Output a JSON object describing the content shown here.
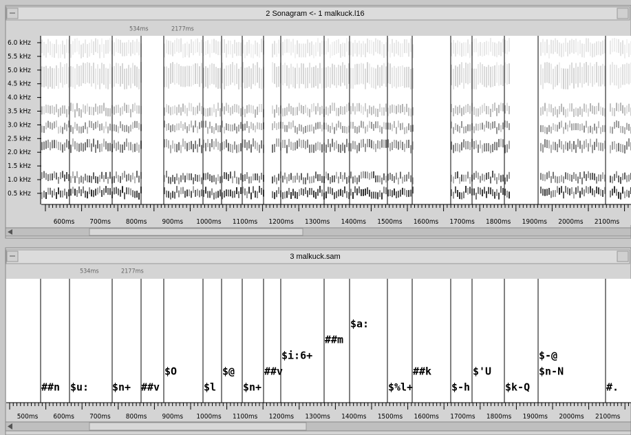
{
  "window1": {
    "title": "2 Sonagram <- 1 malkuck.l16",
    "markers": [
      "534ms",
      "2177ms"
    ],
    "freq_labels": [
      "6.0 kHz",
      "5.5 kHz",
      "5.0 kHz",
      "4.5 kHz",
      "4.0 kHz",
      "3.5 kHz",
      "3.0 kHz",
      "2.5 kHz",
      "2.0 kHz",
      "1.5 kHz",
      "1.0 kHz",
      "0.5 kHz"
    ],
    "time_labels": [
      "600ms",
      "700ms",
      "800ms",
      "900ms",
      "1000ms",
      "1100ms",
      "1200ms",
      "1300ms",
      "1400ms",
      "1500ms",
      "1600ms",
      "1700ms",
      "1800ms",
      "1900ms",
      "2000ms",
      "2100ms"
    ]
  },
  "window2": {
    "title": "3 malkuck.sam",
    "markers": [
      "534ms",
      "2177ms"
    ],
    "segment_labels": [
      "##n",
      "$u:",
      "$n+",
      "##v",
      "$O",
      "$l",
      "$@",
      "$n+",
      "##v",
      "$i:6+",
      "##m",
      "$a:",
      "$%l+",
      "##k",
      "$-h",
      "$'U",
      "$k-Q",
      "$-@",
      "$n-N",
      "#."
    ],
    "time_labels": [
      "500ms",
      "600ms",
      "700ms",
      "800ms",
      "900ms",
      "1000ms",
      "1100ms",
      "1200ms",
      "1300ms",
      "1400ms",
      "1500ms",
      "1600ms",
      "1700ms",
      "1800ms",
      "1900ms",
      "2000ms",
      "2100ms"
    ]
  }
}
